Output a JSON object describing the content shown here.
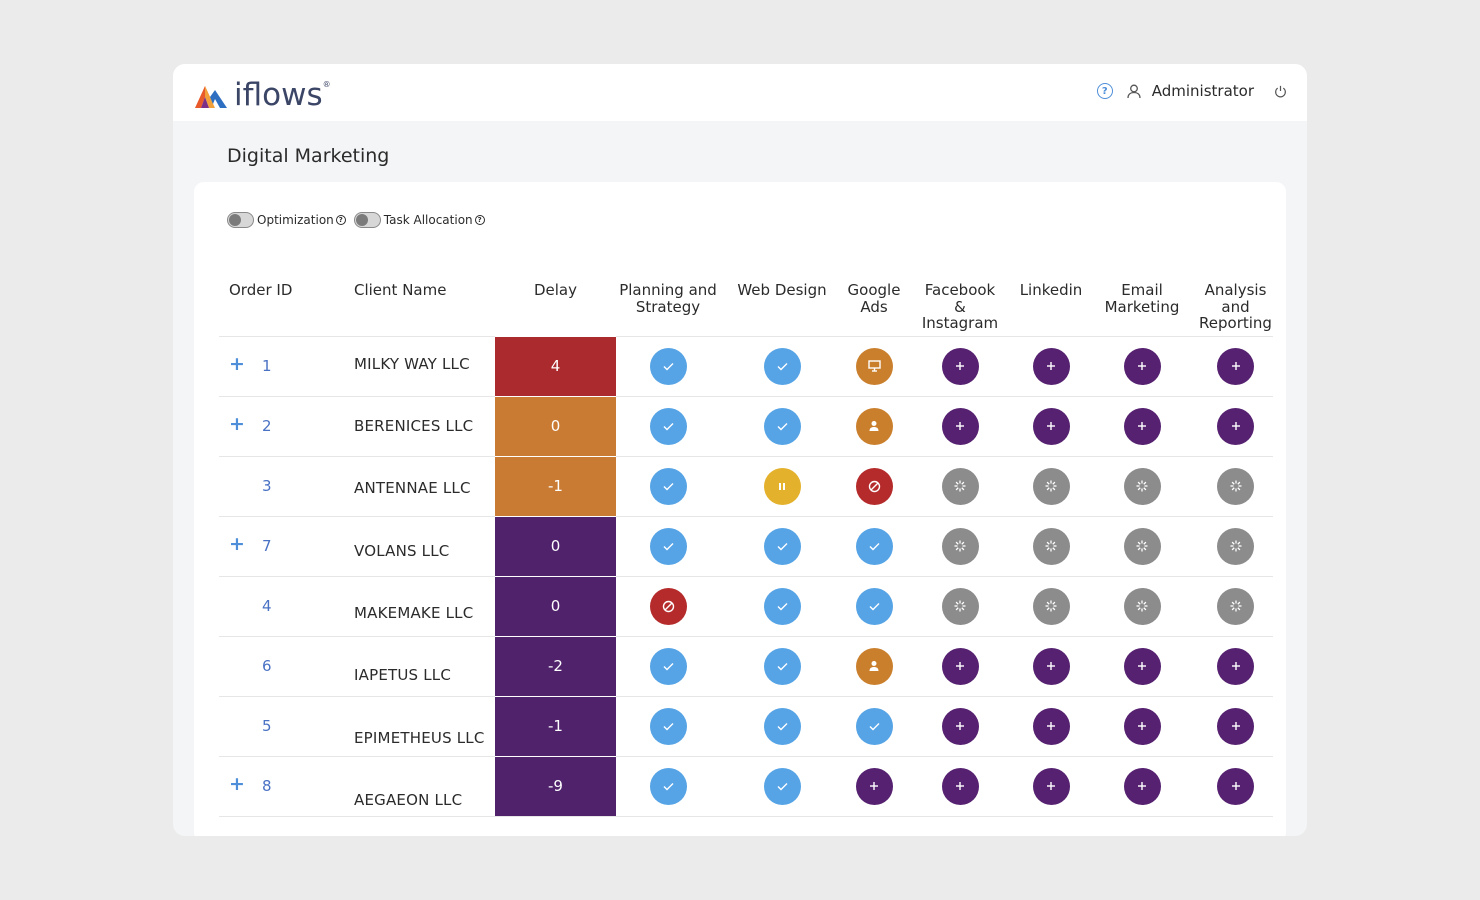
{
  "brand": {
    "name": "iflows",
    "reg": "®"
  },
  "header": {
    "user_label": "Administrator"
  },
  "page": {
    "title": "Digital Marketing"
  },
  "toggles": [
    {
      "label": "Optimization",
      "state": "off"
    },
    {
      "label": "Task Allocation",
      "state": "off"
    }
  ],
  "table": {
    "columns": {
      "order_id": "Order ID",
      "client": "Client Name",
      "delay": "Delay",
      "tasks": [
        {
          "line1": "Planning and",
          "line2": "Strategy",
          "line3": ""
        },
        {
          "line1": "Web Design",
          "line2": "",
          "line3": ""
        },
        {
          "line1": "Google",
          "line2": "Ads",
          "line3": ""
        },
        {
          "line1": "Facebook",
          "line2": "&",
          "line3": "Instagram"
        },
        {
          "line1": "Linkedin",
          "line2": "",
          "line3": ""
        },
        {
          "line1": "Email",
          "line2": "Marketing",
          "line3": ""
        },
        {
          "line1": "Analysis",
          "line2": "and",
          "line3": "Reporting"
        }
      ]
    },
    "rows": [
      {
        "expand": "+",
        "order_id": "1",
        "client": "MILKY WAY LLC",
        "delay": "4",
        "delay_color": "#ab2a2d",
        "statuses": [
          "check",
          "check",
          "monitor",
          "plus",
          "plus",
          "plus",
          "plus"
        ]
      },
      {
        "expand": "+",
        "order_id": "2",
        "client": "BERENICES LLC",
        "delay": "0",
        "delay_color": "#c97b33",
        "statuses": [
          "check",
          "check",
          "person",
          "plus",
          "plus",
          "plus",
          "plus"
        ]
      },
      {
        "expand": "",
        "order_id": "3",
        "client": "ANTENNAE LLC",
        "delay": "-1",
        "delay_color": "#c97b33",
        "statuses": [
          "check",
          "pause",
          "blocked",
          "pending",
          "pending",
          "pending",
          "pending"
        ]
      },
      {
        "expand": "+",
        "order_id": "7",
        "client": "VOLANS LLC",
        "delay": "0",
        "delay_color": "#4f226b",
        "statuses": [
          "check",
          "check",
          "check",
          "pending",
          "pending",
          "pending",
          "pending"
        ]
      },
      {
        "expand": "",
        "order_id": "4",
        "client": "MAKEMAKE LLC",
        "delay": "0",
        "delay_color": "#4f226b",
        "statuses": [
          "blocked",
          "check",
          "check",
          "pending",
          "pending",
          "pending",
          "pending"
        ]
      },
      {
        "expand": "",
        "order_id": "6",
        "client": "IAPETUS LLC",
        "delay": "-2",
        "delay_color": "#4f226b",
        "statuses": [
          "check",
          "check",
          "person",
          "plus",
          "plus",
          "plus",
          "plus"
        ]
      },
      {
        "expand": "",
        "order_id": "5",
        "client": "EPIMETHEUS LLC",
        "delay": "-1",
        "delay_color": "#4f226b",
        "statuses": [
          "check",
          "check",
          "check",
          "plus",
          "plus",
          "plus",
          "plus"
        ]
      },
      {
        "expand": "+",
        "order_id": "8",
        "client": "AEGAEON LLC",
        "delay": "-9",
        "delay_color": "#4f226b",
        "statuses": [
          "check",
          "check",
          "plus",
          "plus",
          "plus",
          "plus",
          "plus"
        ]
      }
    ]
  },
  "colors": {
    "check": "#56a4e6",
    "plus": "#552170",
    "pending": "#8c8c8c",
    "pause": "#e3b12b",
    "blocked": "#b52b2b",
    "in_progress": "#ca7f2d"
  }
}
